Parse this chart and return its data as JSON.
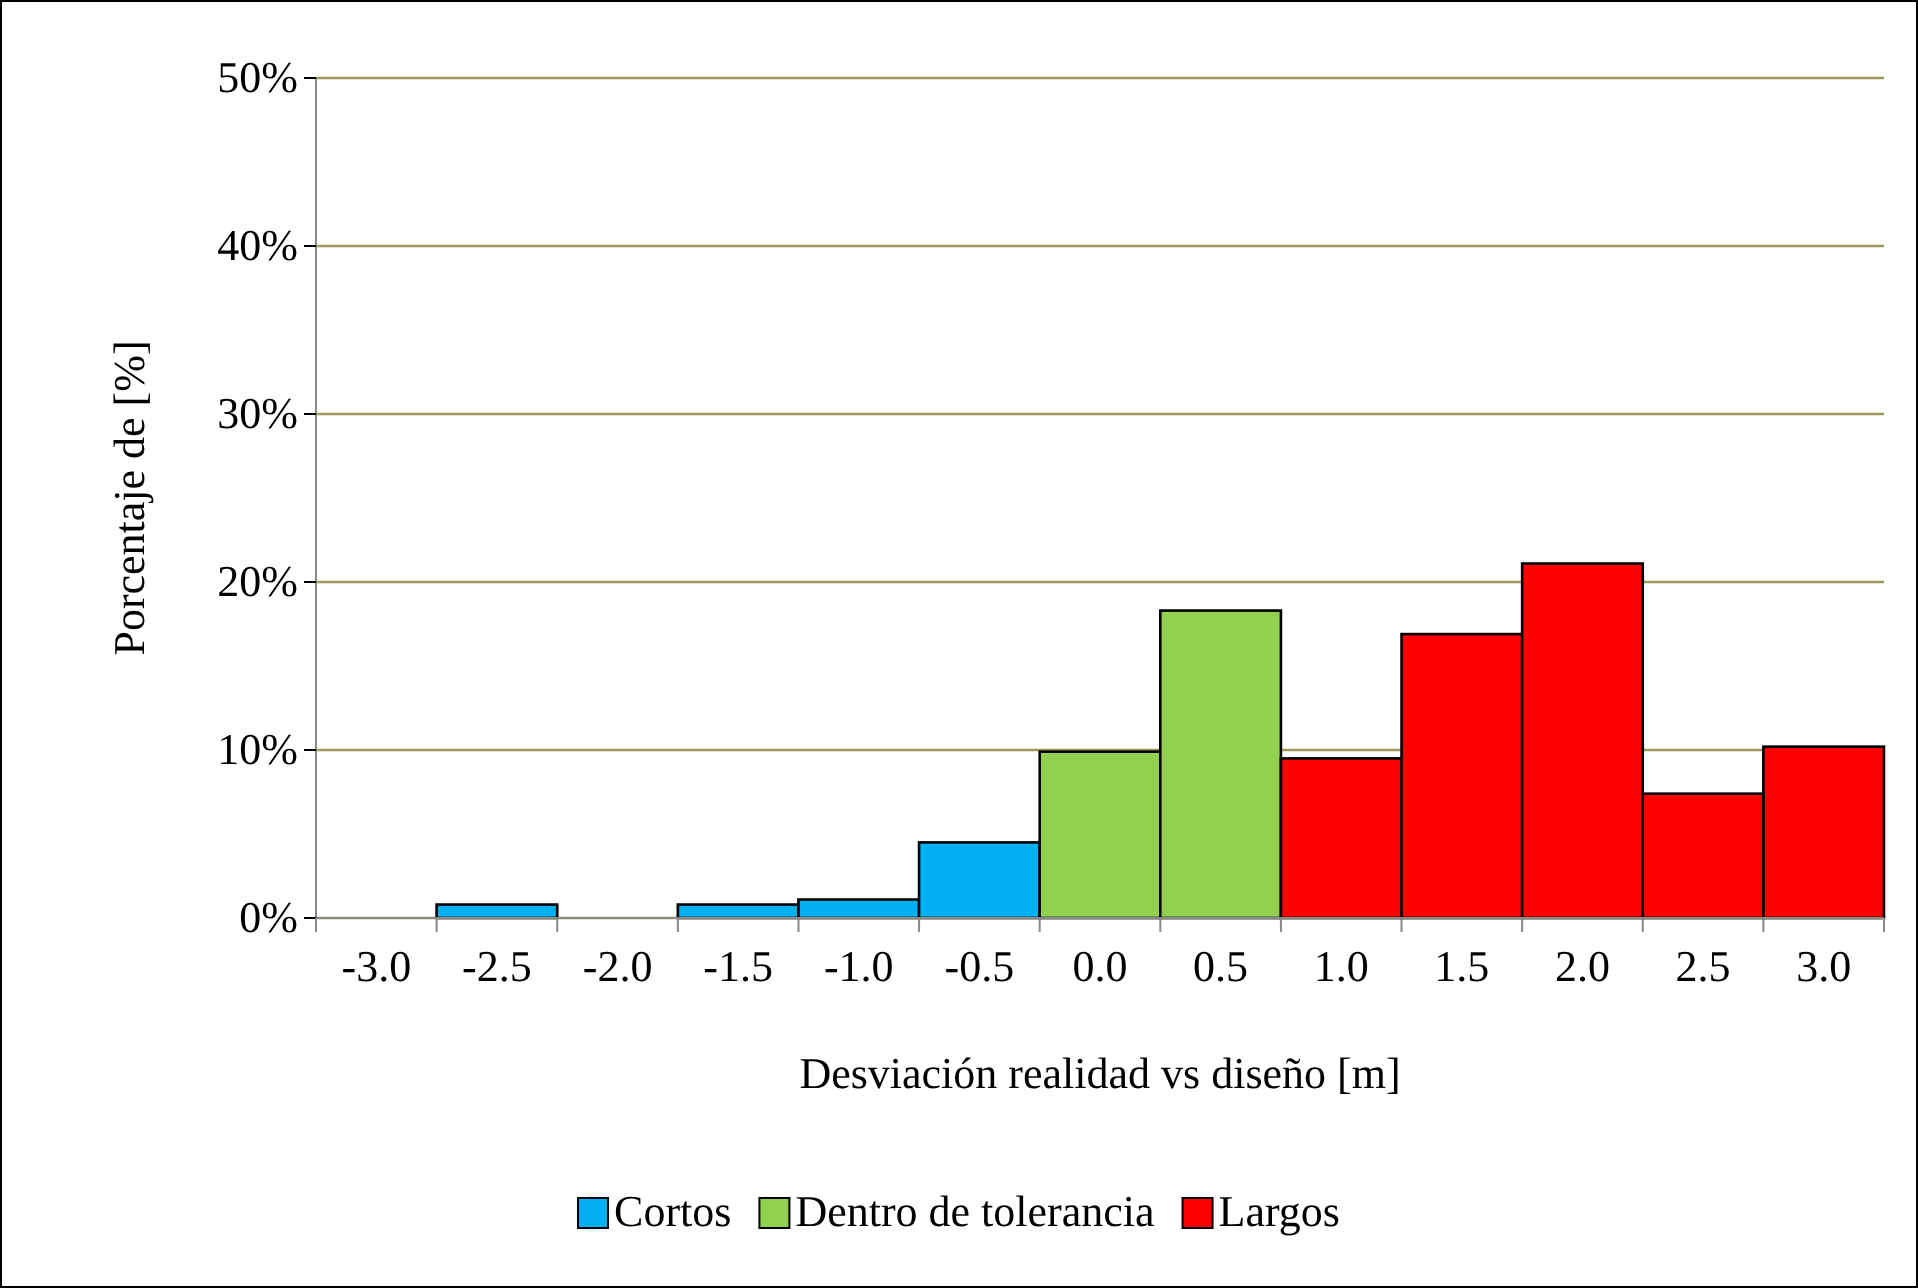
{
  "chart_data": {
    "type": "bar",
    "xlabel": "Desviación realidad vs diseño [m]",
    "ylabel": "Porcentaje de [%]",
    "categories": [
      "-3.0",
      "-2.5",
      "-2.0",
      "-1.5",
      "-1.0",
      "-0.5",
      "0.0",
      "0.5",
      "1.0",
      "1.5",
      "2.0",
      "2.5",
      "3.0"
    ],
    "series": [
      {
        "name": "Cortos",
        "color": "#00b0f0",
        "values": [
          null,
          0.8,
          null,
          0.8,
          1.1,
          4.5,
          null,
          null,
          null,
          null,
          null,
          null,
          null
        ]
      },
      {
        "name": "Dentro de tolerancia",
        "color": "#92d050",
        "values": [
          null,
          null,
          null,
          null,
          null,
          null,
          9.9,
          18.3,
          null,
          null,
          null,
          null,
          null
        ]
      },
      {
        "name": "Largos",
        "color": "#ff0000",
        "values": [
          null,
          null,
          null,
          null,
          null,
          null,
          null,
          null,
          9.5,
          16.9,
          21.1,
          7.4,
          10.2
        ]
      }
    ],
    "ylim": [
      0,
      50
    ],
    "yticks": [
      {
        "value": 0,
        "label": "0%"
      },
      {
        "value": 10,
        "label": "10%"
      },
      {
        "value": 20,
        "label": "20%"
      },
      {
        "value": 30,
        "label": "30%"
      },
      {
        "value": 40,
        "label": "40%"
      },
      {
        "value": 50,
        "label": "50%"
      }
    ],
    "grid": "y",
    "legend": "bottom"
  }
}
